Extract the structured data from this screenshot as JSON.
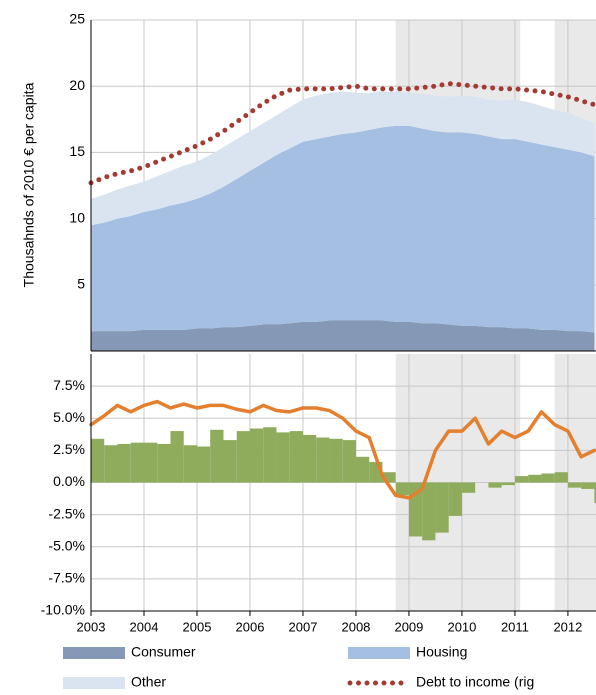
{
  "chart_data": [
    {
      "type": "area",
      "y_label": "Thousahnds of 2010 € per capita",
      "x": [
        2003,
        2003.25,
        2003.5,
        2003.75,
        2004,
        2004.25,
        2004.5,
        2004.75,
        2005,
        2005.25,
        2005.5,
        2005.75,
        2006,
        2006.25,
        2006.5,
        2006.75,
        2007,
        2007.25,
        2007.5,
        2007.75,
        2008,
        2008.25,
        2008.5,
        2008.75,
        2009,
        2009.25,
        2009.5,
        2009.75,
        2010,
        2010.25,
        2010.5,
        2010.75,
        2011,
        2011.25,
        2011.5,
        2011.75,
        2012,
        2012.25,
        2012.5
      ],
      "xlim": [
        2003,
        2012.53
      ],
      "xticks": [
        2003,
        2004,
        2005,
        2006,
        2007,
        2008,
        2009,
        2010,
        2011,
        2012
      ],
      "ylim": [
        0,
        25
      ],
      "yticks": [
        5,
        10,
        15,
        20,
        25
      ],
      "grid": true,
      "shaded_regions": [
        [
          2008.75,
          2011.1
        ],
        [
          2011.75,
          2012.53
        ]
      ],
      "legend": "bottom",
      "series": [
        {
          "name": "Consumer",
          "color": "#8599b6",
          "values": [
            1.5,
            1.5,
            1.5,
            1.5,
            1.6,
            1.6,
            1.6,
            1.6,
            1.7,
            1.7,
            1.8,
            1.8,
            1.9,
            2.0,
            2.0,
            2.1,
            2.2,
            2.2,
            2.3,
            2.3,
            2.3,
            2.3,
            2.3,
            2.2,
            2.2,
            2.1,
            2.1,
            2.0,
            1.9,
            1.9,
            1.8,
            1.8,
            1.7,
            1.7,
            1.6,
            1.6,
            1.5,
            1.5,
            1.4
          ]
        },
        {
          "name": "Housing",
          "color": "#a4bfe1",
          "values": [
            8.0,
            8.2,
            8.5,
            8.7,
            8.9,
            9.1,
            9.4,
            9.6,
            9.8,
            10.2,
            10.6,
            11.2,
            11.7,
            12.2,
            12.8,
            13.2,
            13.6,
            13.8,
            13.9,
            14.1,
            14.2,
            14.4,
            14.6,
            14.8,
            14.8,
            14.7,
            14.5,
            14.5,
            14.6,
            14.5,
            14.4,
            14.2,
            14.3,
            14.1,
            14.0,
            13.8,
            13.7,
            13.5,
            13.3
          ]
        },
        {
          "name": "Other",
          "color": "#dae4f1",
          "values": [
            2.0,
            2.1,
            2.2,
            2.3,
            2.3,
            2.5,
            2.6,
            2.8,
            2.8,
            2.9,
            3.0,
            3.0,
            3.0,
            3.0,
            3.0,
            3.1,
            3.2,
            3.3,
            3.3,
            3.2,
            3.0,
            2.8,
            2.7,
            2.6,
            2.5,
            2.6,
            2.7,
            2.7,
            2.8,
            2.8,
            2.8,
            2.9,
            3.0,
            3.0,
            2.9,
            2.8,
            2.8,
            2.6,
            2.5
          ]
        },
        {
          "name": "Debt to income (rig",
          "type": "line",
          "line_style": "dotted",
          "color": "#a33a33",
          "values": [
            12.7,
            13.1,
            13.4,
            13.6,
            13.9,
            14.3,
            14.7,
            15.1,
            15.5,
            16.0,
            16.6,
            17.3,
            18.0,
            18.7,
            19.3,
            19.7,
            19.8,
            19.8,
            19.8,
            19.9,
            20.0,
            19.8,
            19.8,
            19.8,
            19.8,
            19.9,
            20.0,
            20.2,
            20.1,
            20.0,
            19.9,
            19.8,
            19.8,
            19.7,
            19.6,
            19.4,
            19.2,
            18.9,
            18.6
          ]
        }
      ]
    },
    {
      "type": "bar",
      "x": [
        2003,
        2003.25,
        2003.5,
        2003.75,
        2004,
        2004.25,
        2004.5,
        2004.75,
        2005,
        2005.25,
        2005.5,
        2005.75,
        2006,
        2006.25,
        2006.5,
        2006.75,
        2007,
        2007.25,
        2007.5,
        2007.75,
        2008,
        2008.25,
        2008.5,
        2008.75,
        2009,
        2009.25,
        2009.5,
        2009.75,
        2010,
        2010.25,
        2010.5,
        2010.75,
        2011,
        2011.25,
        2011.5,
        2011.75,
        2012,
        2012.25,
        2012.5
      ],
      "xlim": [
        2003,
        2012.53
      ],
      "xticks": [
        2003,
        2004,
        2005,
        2006,
        2007,
        2008,
        2009,
        2010,
        2011,
        2012
      ],
      "ylim": [
        -10,
        10
      ],
      "yticks": [
        {
          "value": -10,
          "label": "-10.0%"
        },
        {
          "value": -7.5,
          "label": "-7.5%"
        },
        {
          "value": -5,
          "label": "-5.0%"
        },
        {
          "value": -2.5,
          "label": "-2.5%"
        },
        {
          "value": 0,
          "label": "0.0%"
        },
        {
          "value": 2.5,
          "label": "2.5%"
        },
        {
          "value": 5,
          "label": "5.0%"
        },
        {
          "value": 7.5,
          "label": "7.5%"
        }
      ],
      "grid": true,
      "shaded_regions": [
        [
          2008.75,
          2011.1
        ],
        [
          2011.75,
          2012.53
        ]
      ],
      "series": [
        {
          "color": "#8fab5c",
          "values": [
            3.4,
            2.9,
            3.0,
            3.1,
            3.1,
            3.0,
            4.0,
            2.9,
            2.8,
            4.1,
            3.3,
            4.0,
            4.2,
            4.3,
            3.9,
            4.0,
            3.7,
            3.5,
            3.4,
            3.3,
            2.0,
            1.6,
            0.8,
            -1.0,
            -4.2,
            -4.5,
            -3.9,
            -2.6,
            -0.8,
            0.0,
            -0.4,
            -0.2,
            0.5,
            0.6,
            0.7,
            0.8,
            -0.4,
            -0.5,
            -1.6
          ]
        },
        {
          "type": "line",
          "color": "#e47f2e",
          "values": [
            4.5,
            5.2,
            6.0,
            5.5,
            6.0,
            6.3,
            5.8,
            6.1,
            5.8,
            6.0,
            6.0,
            5.7,
            5.5,
            6.0,
            5.6,
            5.5,
            5.8,
            5.8,
            5.6,
            5.0,
            4.0,
            3.5,
            0.5,
            -1.0,
            -1.2,
            -0.5,
            2.5,
            4.0,
            4.0,
            5.0,
            3.0,
            4.0,
            3.5,
            4.0,
            5.5,
            4.5,
            4.0,
            2.0,
            2.5
          ]
        }
      ]
    }
  ]
}
